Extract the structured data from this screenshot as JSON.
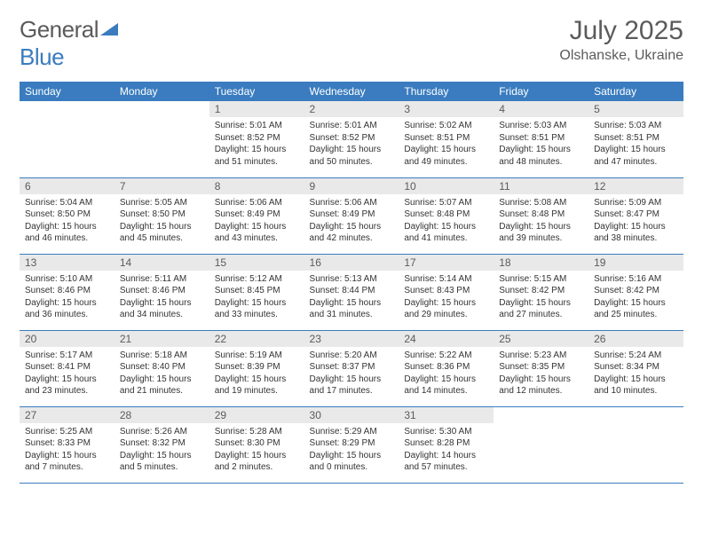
{
  "logo": {
    "part1": "General",
    "part2": "Blue"
  },
  "title": "July 2025",
  "location": "Olshanske, Ukraine",
  "colors": {
    "header_bg": "#3a7cbf",
    "header_text": "#ffffff",
    "daynum_bg": "#e9e9e9",
    "text_muted": "#5b5b5b",
    "text_body": "#333333",
    "row_border": "#3a7cbf",
    "page_bg": "#ffffff"
  },
  "typography": {
    "title_fontsize": 30,
    "location_fontsize": 16,
    "header_fontsize": 12,
    "body_fontsize": 10
  },
  "weekdays": [
    "Sunday",
    "Monday",
    "Tuesday",
    "Wednesday",
    "Thursday",
    "Friday",
    "Saturday"
  ],
  "weeks": [
    [
      {
        "empty": true
      },
      {
        "empty": true
      },
      {
        "day": "1",
        "sunrise": "Sunrise: 5:01 AM",
        "sunset": "Sunset: 8:52 PM",
        "daylight1": "Daylight: 15 hours",
        "daylight2": "and 51 minutes."
      },
      {
        "day": "2",
        "sunrise": "Sunrise: 5:01 AM",
        "sunset": "Sunset: 8:52 PM",
        "daylight1": "Daylight: 15 hours",
        "daylight2": "and 50 minutes."
      },
      {
        "day": "3",
        "sunrise": "Sunrise: 5:02 AM",
        "sunset": "Sunset: 8:51 PM",
        "daylight1": "Daylight: 15 hours",
        "daylight2": "and 49 minutes."
      },
      {
        "day": "4",
        "sunrise": "Sunrise: 5:03 AM",
        "sunset": "Sunset: 8:51 PM",
        "daylight1": "Daylight: 15 hours",
        "daylight2": "and 48 minutes."
      },
      {
        "day": "5",
        "sunrise": "Sunrise: 5:03 AM",
        "sunset": "Sunset: 8:51 PM",
        "daylight1": "Daylight: 15 hours",
        "daylight2": "and 47 minutes."
      }
    ],
    [
      {
        "day": "6",
        "sunrise": "Sunrise: 5:04 AM",
        "sunset": "Sunset: 8:50 PM",
        "daylight1": "Daylight: 15 hours",
        "daylight2": "and 46 minutes."
      },
      {
        "day": "7",
        "sunrise": "Sunrise: 5:05 AM",
        "sunset": "Sunset: 8:50 PM",
        "daylight1": "Daylight: 15 hours",
        "daylight2": "and 45 minutes."
      },
      {
        "day": "8",
        "sunrise": "Sunrise: 5:06 AM",
        "sunset": "Sunset: 8:49 PM",
        "daylight1": "Daylight: 15 hours",
        "daylight2": "and 43 minutes."
      },
      {
        "day": "9",
        "sunrise": "Sunrise: 5:06 AM",
        "sunset": "Sunset: 8:49 PM",
        "daylight1": "Daylight: 15 hours",
        "daylight2": "and 42 minutes."
      },
      {
        "day": "10",
        "sunrise": "Sunrise: 5:07 AM",
        "sunset": "Sunset: 8:48 PM",
        "daylight1": "Daylight: 15 hours",
        "daylight2": "and 41 minutes."
      },
      {
        "day": "11",
        "sunrise": "Sunrise: 5:08 AM",
        "sunset": "Sunset: 8:48 PM",
        "daylight1": "Daylight: 15 hours",
        "daylight2": "and 39 minutes."
      },
      {
        "day": "12",
        "sunrise": "Sunrise: 5:09 AM",
        "sunset": "Sunset: 8:47 PM",
        "daylight1": "Daylight: 15 hours",
        "daylight2": "and 38 minutes."
      }
    ],
    [
      {
        "day": "13",
        "sunrise": "Sunrise: 5:10 AM",
        "sunset": "Sunset: 8:46 PM",
        "daylight1": "Daylight: 15 hours",
        "daylight2": "and 36 minutes."
      },
      {
        "day": "14",
        "sunrise": "Sunrise: 5:11 AM",
        "sunset": "Sunset: 8:46 PM",
        "daylight1": "Daylight: 15 hours",
        "daylight2": "and 34 minutes."
      },
      {
        "day": "15",
        "sunrise": "Sunrise: 5:12 AM",
        "sunset": "Sunset: 8:45 PM",
        "daylight1": "Daylight: 15 hours",
        "daylight2": "and 33 minutes."
      },
      {
        "day": "16",
        "sunrise": "Sunrise: 5:13 AM",
        "sunset": "Sunset: 8:44 PM",
        "daylight1": "Daylight: 15 hours",
        "daylight2": "and 31 minutes."
      },
      {
        "day": "17",
        "sunrise": "Sunrise: 5:14 AM",
        "sunset": "Sunset: 8:43 PM",
        "daylight1": "Daylight: 15 hours",
        "daylight2": "and 29 minutes."
      },
      {
        "day": "18",
        "sunrise": "Sunrise: 5:15 AM",
        "sunset": "Sunset: 8:42 PM",
        "daylight1": "Daylight: 15 hours",
        "daylight2": "and 27 minutes."
      },
      {
        "day": "19",
        "sunrise": "Sunrise: 5:16 AM",
        "sunset": "Sunset: 8:42 PM",
        "daylight1": "Daylight: 15 hours",
        "daylight2": "and 25 minutes."
      }
    ],
    [
      {
        "day": "20",
        "sunrise": "Sunrise: 5:17 AM",
        "sunset": "Sunset: 8:41 PM",
        "daylight1": "Daylight: 15 hours",
        "daylight2": "and 23 minutes."
      },
      {
        "day": "21",
        "sunrise": "Sunrise: 5:18 AM",
        "sunset": "Sunset: 8:40 PM",
        "daylight1": "Daylight: 15 hours",
        "daylight2": "and 21 minutes."
      },
      {
        "day": "22",
        "sunrise": "Sunrise: 5:19 AM",
        "sunset": "Sunset: 8:39 PM",
        "daylight1": "Daylight: 15 hours",
        "daylight2": "and 19 minutes."
      },
      {
        "day": "23",
        "sunrise": "Sunrise: 5:20 AM",
        "sunset": "Sunset: 8:37 PM",
        "daylight1": "Daylight: 15 hours",
        "daylight2": "and 17 minutes."
      },
      {
        "day": "24",
        "sunrise": "Sunrise: 5:22 AM",
        "sunset": "Sunset: 8:36 PM",
        "daylight1": "Daylight: 15 hours",
        "daylight2": "and 14 minutes."
      },
      {
        "day": "25",
        "sunrise": "Sunrise: 5:23 AM",
        "sunset": "Sunset: 8:35 PM",
        "daylight1": "Daylight: 15 hours",
        "daylight2": "and 12 minutes."
      },
      {
        "day": "26",
        "sunrise": "Sunrise: 5:24 AM",
        "sunset": "Sunset: 8:34 PM",
        "daylight1": "Daylight: 15 hours",
        "daylight2": "and 10 minutes."
      }
    ],
    [
      {
        "day": "27",
        "sunrise": "Sunrise: 5:25 AM",
        "sunset": "Sunset: 8:33 PM",
        "daylight1": "Daylight: 15 hours",
        "daylight2": "and 7 minutes."
      },
      {
        "day": "28",
        "sunrise": "Sunrise: 5:26 AM",
        "sunset": "Sunset: 8:32 PM",
        "daylight1": "Daylight: 15 hours",
        "daylight2": "and 5 minutes."
      },
      {
        "day": "29",
        "sunrise": "Sunrise: 5:28 AM",
        "sunset": "Sunset: 8:30 PM",
        "daylight1": "Daylight: 15 hours",
        "daylight2": "and 2 minutes."
      },
      {
        "day": "30",
        "sunrise": "Sunrise: 5:29 AM",
        "sunset": "Sunset: 8:29 PM",
        "daylight1": "Daylight: 15 hours",
        "daylight2": "and 0 minutes."
      },
      {
        "day": "31",
        "sunrise": "Sunrise: 5:30 AM",
        "sunset": "Sunset: 8:28 PM",
        "daylight1": "Daylight: 14 hours",
        "daylight2": "and 57 minutes."
      },
      {
        "empty": true
      },
      {
        "empty": true
      }
    ]
  ]
}
